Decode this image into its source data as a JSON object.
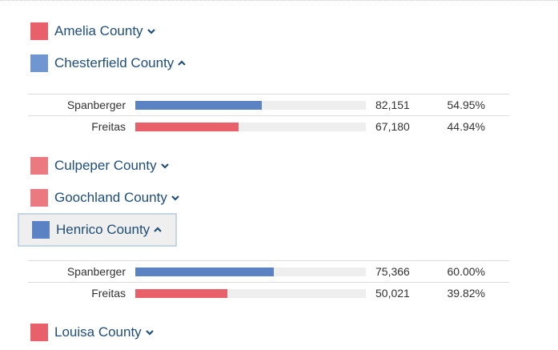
{
  "colors": {
    "democrat": "#5b83c4",
    "republican": "#e8616a",
    "democrat_light": "#7096cf",
    "republican_light": "#ea7a80",
    "county_text": "#1f4e79"
  },
  "counties": [
    {
      "name": "Amelia County",
      "expanded": false,
      "winner": "republican",
      "chevron": "chevron-down-icon"
    },
    {
      "name": "Chesterfield County",
      "expanded": true,
      "winner": "democrat",
      "chevron": "chevron-up-icon",
      "results": [
        {
          "candidate": "Spanberger",
          "party": "democrat",
          "votes": "82,151",
          "percent": "54.95%",
          "share": 0.5495
        },
        {
          "candidate": "Freitas",
          "party": "republican",
          "votes": "67,180",
          "percent": "44.94%",
          "share": 0.4494
        }
      ]
    },
    {
      "name": "Culpeper County",
      "expanded": false,
      "winner": "republican",
      "chevron": "chevron-down-icon"
    },
    {
      "name": "Goochland County",
      "expanded": false,
      "winner": "republican",
      "chevron": "chevron-down-icon"
    },
    {
      "name": "Henrico County",
      "expanded": true,
      "selected": true,
      "winner": "democrat",
      "chevron": "chevron-up-icon",
      "results": [
        {
          "candidate": "Spanberger",
          "party": "democrat",
          "votes": "75,366",
          "percent": "60.00%",
          "share": 0.6
        },
        {
          "candidate": "Freitas",
          "party": "republican",
          "votes": "50,021",
          "percent": "39.82%",
          "share": 0.3982
        }
      ]
    },
    {
      "name": "Louisa County",
      "expanded": false,
      "winner": "republican",
      "chevron": "chevron-down-icon"
    }
  ]
}
